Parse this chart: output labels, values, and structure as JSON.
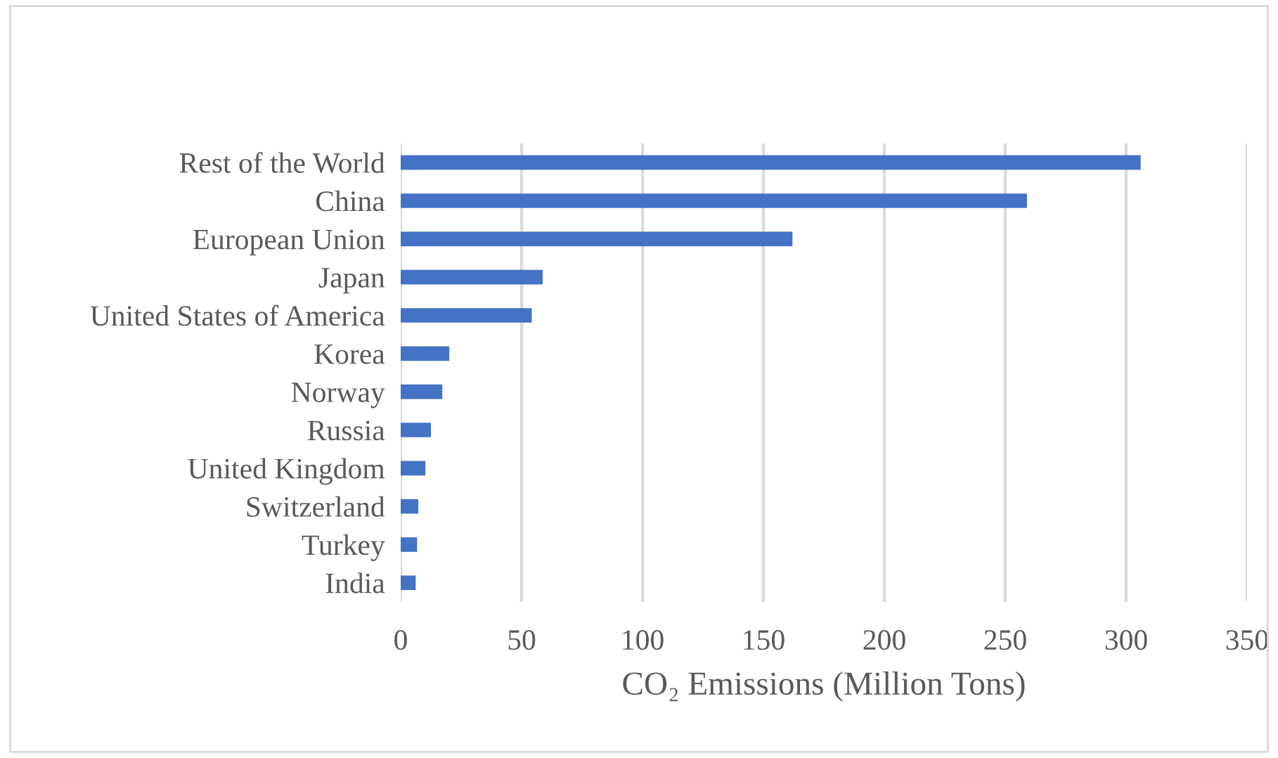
{
  "chart_data": {
    "type": "bar",
    "orientation": "horizontal",
    "xlabel": "CO₂ Emissions (Million Tons)",
    "categories": [
      "Rest of the World",
      "China",
      "European Union",
      "Japan",
      "United States of America",
      "Korea",
      "Norway",
      "Russia",
      "United Kingdom",
      "Switzerland",
      "Turkey",
      "India"
    ],
    "values": [
      306,
      259,
      162,
      58.7,
      54.2,
      20.1,
      17.2,
      12.5,
      10.2,
      7.3,
      6.8,
      6.2
    ],
    "color": "#4472c4",
    "xlim": [
      0,
      350
    ],
    "xticks": [
      0,
      50,
      100,
      150,
      200,
      250,
      300,
      350
    ],
    "grid": "x",
    "legend": false
  }
}
